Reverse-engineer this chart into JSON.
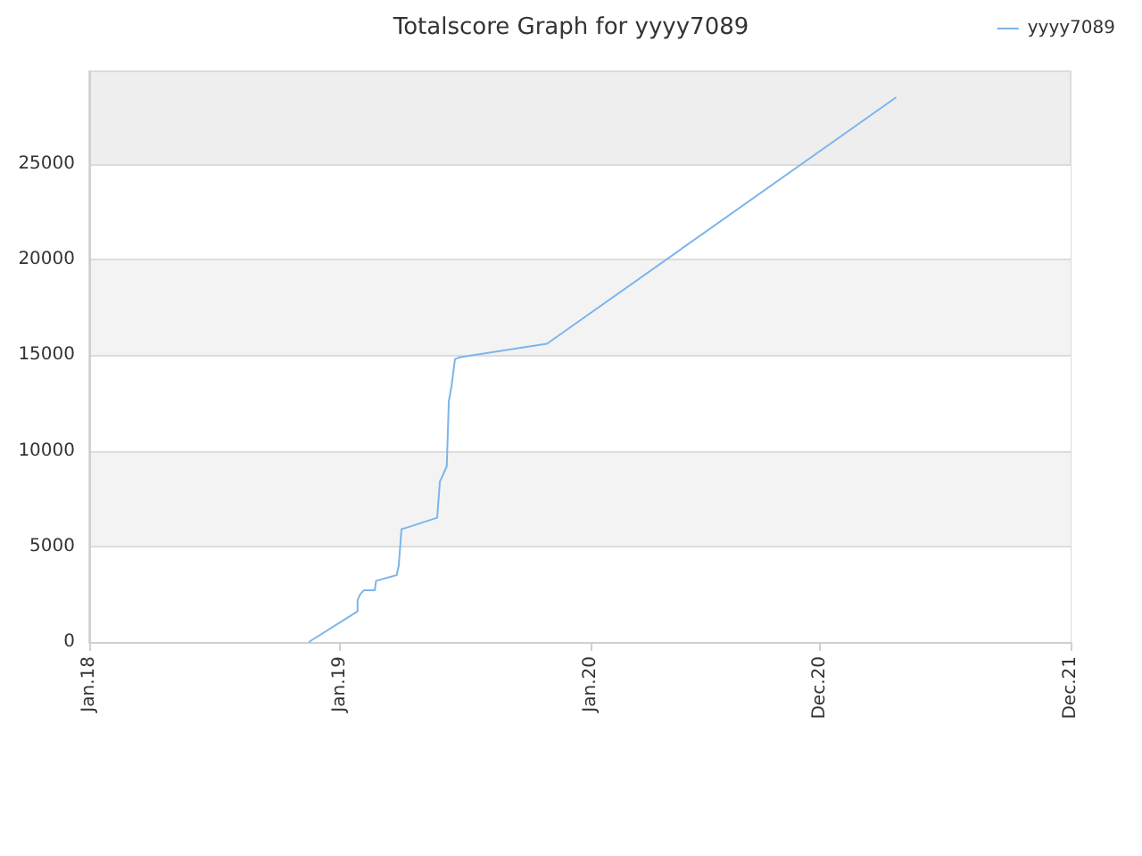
{
  "chart_data": {
    "type": "line",
    "title": "Totalscore Graph for yyyy7089",
    "x": [
      "2018-11-17",
      "2019-01-27",
      "2019-01-27",
      "2019-01-31",
      "2019-02-05",
      "2019-02-21",
      "2019-02-23",
      "2019-03-25",
      "2019-03-28",
      "2019-04-01",
      "2019-04-10",
      "2019-05-23",
      "2019-05-27",
      "2019-05-31",
      "2019-06-06",
      "2019-06-09",
      "2019-06-13",
      "2019-06-18",
      "2019-06-26",
      "2019-10-30",
      "2021-03-22"
    ],
    "series": [
      {
        "name": "yyyy7089",
        "color": "#7cb5ec",
        "values": [
          0,
          1600,
          2200,
          2500,
          2700,
          2700,
          3200,
          3500,
          4000,
          5900,
          6000,
          6500,
          8400,
          8700,
          9200,
          12600,
          13400,
          14800,
          14900,
          15600,
          28500
        ]
      }
    ],
    "xlim": [
      "2018-01-01",
      "2021-12-01"
    ],
    "xticks": [
      {
        "value": "2018-01-01",
        "label": "Jan.18"
      },
      {
        "value": "2019-01-01",
        "label": "Jan.19"
      },
      {
        "value": "2020-01-01",
        "label": "Jan.20"
      },
      {
        "value": "2020-12-01",
        "label": "Dec.20"
      },
      {
        "value": "2021-12-01",
        "label": "Dec.21"
      }
    ],
    "ylim": [
      0,
      29850
    ],
    "yticks": [
      0,
      5000,
      10000,
      15000,
      20000,
      25000
    ],
    "grid": "y",
    "legend": "top right",
    "marker": "none",
    "line_style": "solid"
  }
}
